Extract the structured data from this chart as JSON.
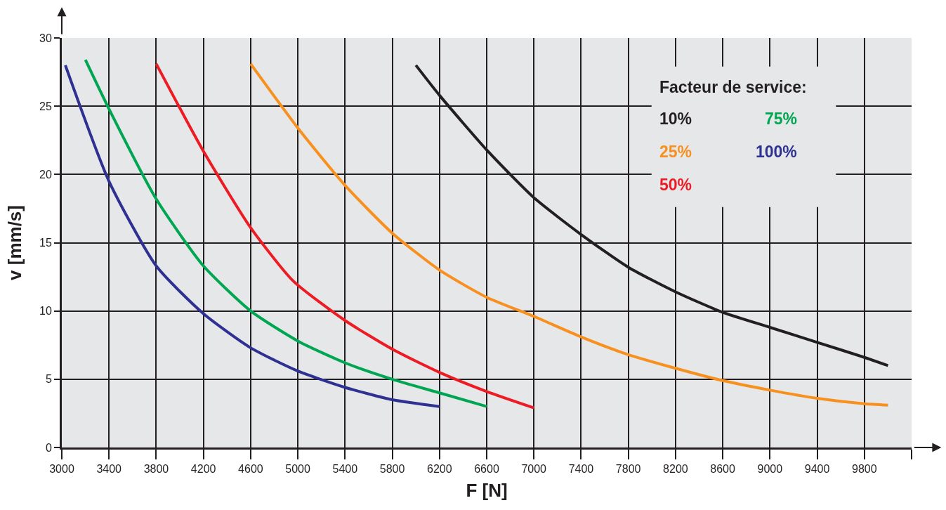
{
  "chart_data": {
    "type": "line",
    "xlabel": "F [N]",
    "ylabel": "v [mm/s]",
    "legend_title": "Facteur de service:",
    "xlim": [
      3000,
      10200
    ],
    "ylim": [
      0,
      30
    ],
    "xticks": [
      3000,
      3400,
      3800,
      4200,
      4600,
      5000,
      5400,
      5800,
      6200,
      6600,
      7000,
      7400,
      7800,
      8200,
      8600,
      9000,
      9400,
      9800,
      {
        "value": 10200,
        "label": null
      }
    ],
    "yticks": [
      0,
      5,
      10,
      15,
      20,
      25,
      30
    ],
    "grid": true,
    "legend": "top right",
    "marker": "none",
    "line_style": "solid",
    "series": [
      {
        "name": "10%",
        "color": "#231f20",
        "x": [
          6000,
          6200,
          6600,
          7000,
          7400,
          7800,
          8200,
          8600,
          9000,
          9400,
          9800,
          10000
        ],
        "values": [
          28.0,
          25.8,
          21.8,
          18.3,
          15.6,
          13.2,
          11.4,
          9.9,
          8.8,
          7.7,
          6.6,
          6.0
        ]
      },
      {
        "name": "25%",
        "color": "#f7901e",
        "x": [
          4600,
          5000,
          5400,
          5800,
          6200,
          6600,
          7000,
          7400,
          7800,
          8200,
          8600,
          9000,
          9400,
          9800,
          10000
        ],
        "values": [
          28.1,
          23.4,
          19.2,
          15.7,
          13.0,
          11.0,
          9.6,
          8.1,
          6.8,
          5.8,
          4.9,
          4.2,
          3.6,
          3.2,
          3.1
        ]
      },
      {
        "name": "50%",
        "color": "#ed1c24",
        "x": [
          3800,
          4200,
          4600,
          4960,
          5400,
          5800,
          6200,
          6600,
          7000
        ],
        "values": [
          28.1,
          21.7,
          16.1,
          12.2,
          9.3,
          7.2,
          5.5,
          4.1,
          2.9
        ]
      },
      {
        "name": "75%",
        "color": "#00a651",
        "x": [
          3200,
          3400,
          3800,
          4200,
          4600,
          5000,
          5400,
          5800,
          6200,
          6600
        ],
        "values": [
          28.4,
          24.8,
          18.2,
          13.3,
          10.0,
          7.8,
          6.2,
          5.0,
          4.0,
          3.0
        ]
      },
      {
        "name": "100%",
        "color": "#2e3192",
        "x": [
          3030,
          3400,
          3800,
          4200,
          4600,
          5000,
          5400,
          5800,
          6200
        ],
        "values": [
          28.0,
          19.5,
          13.3,
          9.8,
          7.3,
          5.6,
          4.4,
          3.5,
          3.0
        ]
      }
    ]
  }
}
